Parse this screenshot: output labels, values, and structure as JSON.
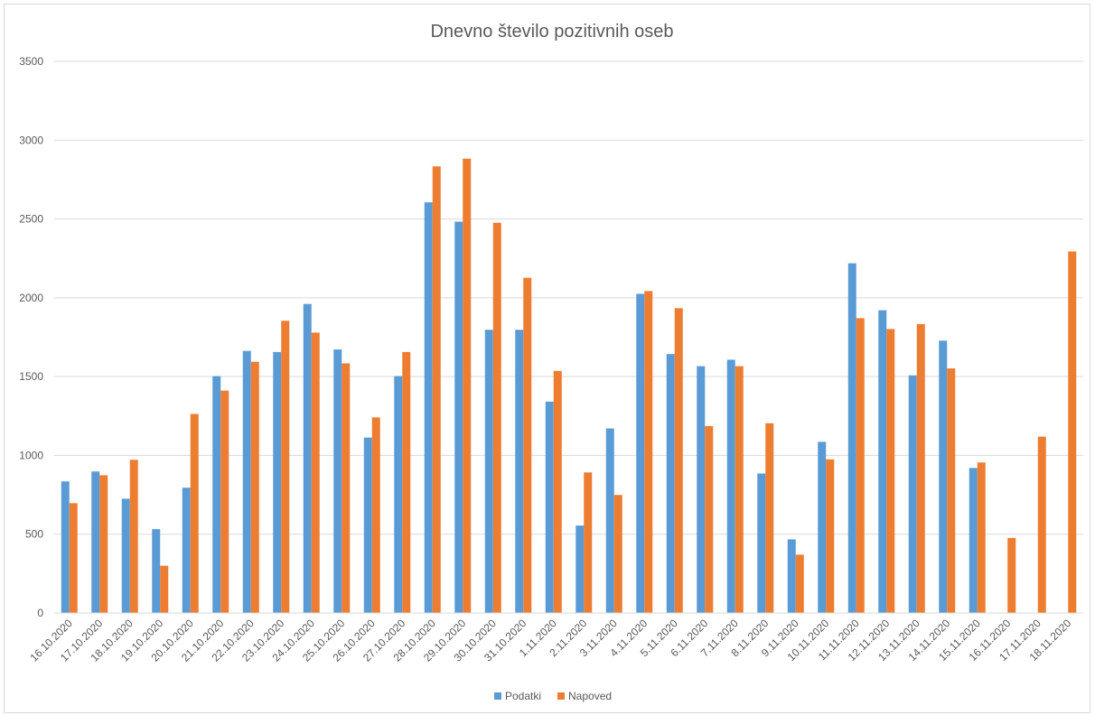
{
  "chart_data": {
    "type": "bar",
    "title": "Dnevno število pozitivnih oseb",
    "xlabel": "",
    "ylabel": "",
    "ylim": [
      0,
      3500
    ],
    "yticks": [
      0,
      500,
      1000,
      1500,
      2000,
      2500,
      3000,
      3500
    ],
    "grid": true,
    "legend_position": "bottom",
    "categories": [
      "16.10.2020",
      "17.10.2020",
      "18.10.2020",
      "19.10.2020",
      "20.10.2020",
      "21.10.2020",
      "22.10.2020",
      "23.10.2020",
      "24.10.2020",
      "25.10.2020",
      "26.10.2020",
      "27.10.2020",
      "28.10.2020",
      "29.10.2020",
      "30.10.2020",
      "31.10.2020",
      "1.11.2020",
      "2.11.2020",
      "3.11.2020",
      "4.11.2020",
      "5.11.2020",
      "6.11.2020",
      "7.11.2020",
      "8.11.2020",
      "9.11.2020",
      "10.11.2020",
      "11.11.2020",
      "12.11.2020",
      "13.11.2020",
      "14.11.2020",
      "15.11.2020",
      "16.11.2020",
      "17.11.2020",
      "18.11.2020"
    ],
    "series": [
      {
        "name": "Podatki",
        "color": "#5b9bd5",
        "values": [
          835,
          898,
          725,
          532,
          795,
          1503,
          1663,
          1656,
          1961,
          1672,
          1113,
          1503,
          2606,
          2483,
          1797,
          1797,
          1341,
          555,
          1171,
          2025,
          1643,
          1566,
          1607,
          885,
          467,
          1086,
          2219,
          1921,
          1508,
          1728,
          920,
          null,
          null,
          null
        ]
      },
      {
        "name": "Napoved",
        "color": "#ed7d31",
        "values": [
          697,
          874,
          972,
          300,
          1263,
          1411,
          1594,
          1854,
          1779,
          1584,
          1241,
          1656,
          2834,
          2883,
          2476,
          2127,
          1536,
          892,
          749,
          2043,
          1934,
          1186,
          1566,
          1204,
          370,
          975,
          1871,
          1802,
          1833,
          1552,
          955,
          476,
          1119,
          2294
        ]
      }
    ]
  }
}
